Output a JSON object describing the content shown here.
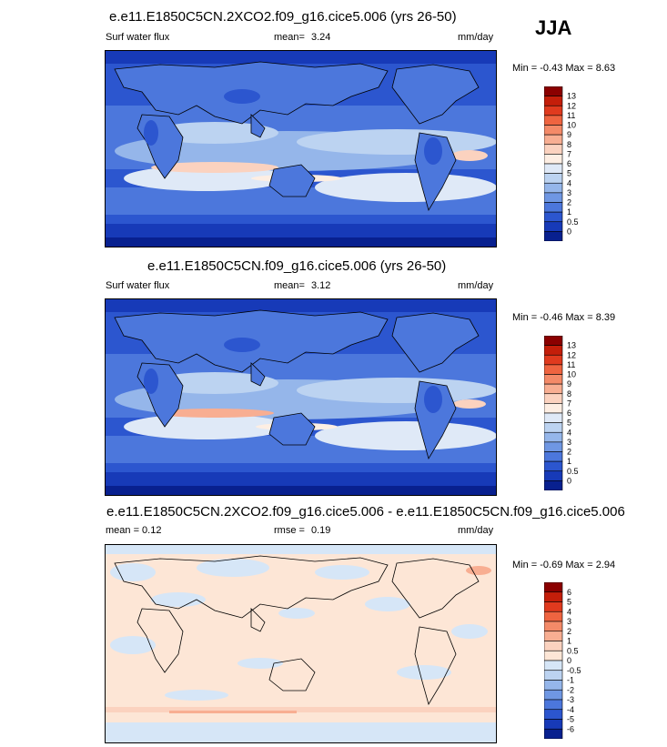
{
  "season": "JJA",
  "panels": [
    {
      "title": "e.e11.E1850C5CN.2XCO2.f09_g16.cice5.006 (yrs 26-50)",
      "left": "Surf water flux",
      "mid_label": "mean=",
      "mid_value": "3.24",
      "units": "mm/day",
      "minmax": "Min =  -0.43 Max =   8.63",
      "colorbar": {
        "labels": [
          "13",
          "12",
          "11",
          "10",
          "9",
          "8",
          "7",
          "6",
          "5",
          "4",
          "3",
          "2",
          "1",
          "0.5",
          "0"
        ],
        "colors": [
          "#8b0000",
          "#c41e0a",
          "#e03a1e",
          "#ef6440",
          "#f48a68",
          "#f8ae92",
          "#fbd2bf",
          "#fdeee3",
          "#dfe9f7",
          "#bcd3f1",
          "#95b6ea",
          "#6f97e3",
          "#4c77dc",
          "#2c56cf",
          "#173ab8",
          "#08208f"
        ]
      }
    },
    {
      "title": "e.e11.E1850C5CN.f09_g16.cice5.006 (yrs 26-50)",
      "left": "Surf water flux",
      "mid_label": "mean=",
      "mid_value": "3.12",
      "units": "mm/day",
      "minmax": "Min =  -0.46 Max =   8.39",
      "colorbar": {
        "labels": [
          "13",
          "12",
          "11",
          "10",
          "9",
          "8",
          "7",
          "6",
          "5",
          "4",
          "3",
          "2",
          "1",
          "0.5",
          "0"
        ],
        "colors": [
          "#8b0000",
          "#c41e0a",
          "#e03a1e",
          "#ef6440",
          "#f48a68",
          "#f8ae92",
          "#fbd2bf",
          "#fdeee3",
          "#dfe9f7",
          "#bcd3f1",
          "#95b6ea",
          "#6f97e3",
          "#4c77dc",
          "#2c56cf",
          "#173ab8",
          "#08208f"
        ]
      }
    },
    {
      "title": "e.e11.E1850C5CN.2XCO2.f09_g16.cice5.006 - e.e11.E1850C5CN.f09_g16.cice5.006",
      "left": "mean =   0.12",
      "mid_label": "rmse =",
      "mid_value": "0.19",
      "units": "mm/day",
      "minmax": "Min =  -0.69 Max =   2.94",
      "colorbar": {
        "labels": [
          "6",
          "5",
          "4",
          "3",
          "2",
          "1",
          "0.5",
          "0",
          "-0.5",
          "-1",
          "-2",
          "-3",
          "-4",
          "-5",
          "-6"
        ],
        "colors": [
          "#8b0000",
          "#c41e0a",
          "#e03a1e",
          "#ef6440",
          "#f48a68",
          "#f8ae92",
          "#fbd2bf",
          "#fde6d6",
          "#d6e6f7",
          "#bcd3f1",
          "#95b6ea",
          "#6f97e3",
          "#4c77dc",
          "#2c56cf",
          "#173ab8",
          "#08208f"
        ]
      }
    }
  ]
}
